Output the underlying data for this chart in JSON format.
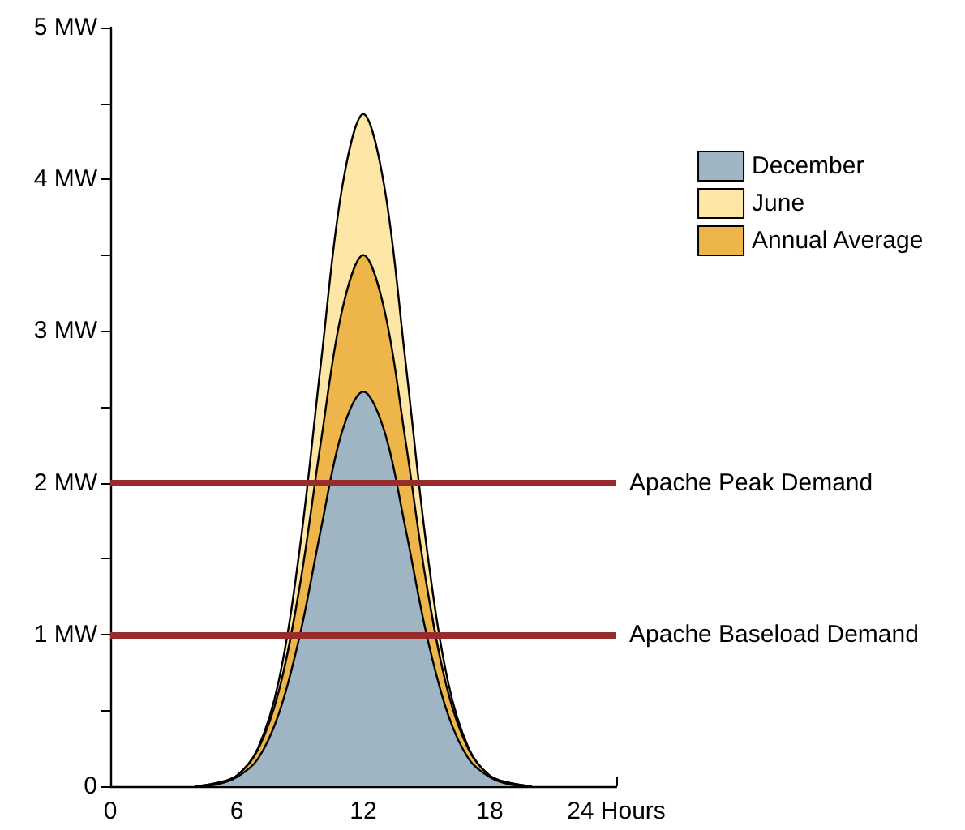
{
  "chart_data": {
    "type": "area",
    "x": [
      4,
      5,
      6,
      7,
      8,
      9,
      10,
      11,
      12,
      13,
      14,
      15,
      16,
      17,
      18,
      19,
      20
    ],
    "series": [
      {
        "name": "December",
        "color": "#9fb5c3",
        "values": [
          0,
          0.01,
          0.06,
          0.18,
          0.48,
          1.0,
          1.7,
          2.34,
          2.6,
          2.34,
          1.7,
          1.0,
          0.48,
          0.18,
          0.06,
          0.01,
          0
        ]
      },
      {
        "name": "June",
        "color": "#fde6a6",
        "values": [
          0,
          0.02,
          0.07,
          0.25,
          0.7,
          1.58,
          2.8,
          3.95,
          4.43,
          3.95,
          2.8,
          1.58,
          0.7,
          0.25,
          0.07,
          0.02,
          0
        ]
      },
      {
        "name": "Annual Average",
        "color": "#edb54a",
        "values": [
          0,
          0.02,
          0.07,
          0.24,
          0.63,
          1.33,
          2.28,
          3.14,
          3.5,
          3.14,
          2.28,
          1.33,
          0.63,
          0.24,
          0.07,
          0.02,
          0
        ]
      }
    ],
    "xlim": [
      0,
      24
    ],
    "xticks": [
      0,
      6,
      12,
      18,
      {
        "value": 24,
        "label": "24 Hours"
      }
    ],
    "ylim": [
      0,
      5
    ],
    "yticks": [
      0,
      {
        "value": 0.5,
        "label": null
      },
      {
        "value": 1,
        "label": "1 MW"
      },
      {
        "value": 1.5,
        "label": null
      },
      {
        "value": 2,
        "label": "2 MW"
      },
      {
        "value": 2.5,
        "label": null
      },
      {
        "value": 3,
        "label": "3 MW"
      },
      {
        "value": 3.5,
        "label": null
      },
      {
        "value": 4,
        "label": "4 MW"
      },
      {
        "value": 4.5,
        "label": null
      },
      {
        "value": 5,
        "label": "5 MW"
      }
    ],
    "ref_lines": [
      {
        "axis": "y",
        "value": 2,
        "label": "Apache Peak Demand",
        "color": "#982b2b"
      },
      {
        "axis": "y",
        "value": 1,
        "label": "Apache Baseload Demand",
        "color": "#982b2b"
      }
    ],
    "legend": "top right",
    "grid": false,
    "marker": "none"
  }
}
